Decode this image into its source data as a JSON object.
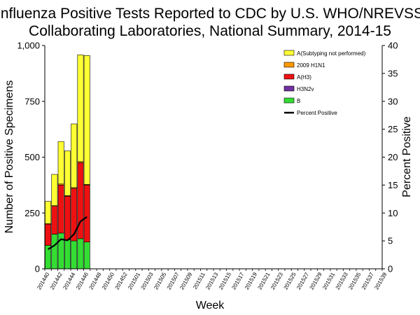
{
  "chart_data": {
    "type": "bar",
    "title_line1": "Influenza Positive Tests Reported to CDC by U.S. WHO/NREVSS",
    "title_line2": "Collaborating Laboratories, National Summary, 2014-15",
    "xlabel": "Week",
    "ylabel": "Number of Positive Specimens",
    "y2label": "Percent Positive",
    "ylim": [
      0,
      1000
    ],
    "y2lim": [
      0,
      40
    ],
    "yticks": [
      "0",
      "250",
      "500",
      "750",
      "1,000"
    ],
    "y2ticks": [
      "0",
      "5",
      "10",
      "15",
      "20",
      "25",
      "30",
      "35",
      "40"
    ],
    "x_tick_labels": [
      "201440",
      "201442",
      "201444",
      "201446",
      "201448",
      "201450",
      "201452",
      "201501",
      "201503",
      "201505",
      "201507",
      "201509",
      "201511",
      "201513",
      "201515",
      "201517",
      "201519",
      "201521",
      "201523",
      "201525",
      "201527",
      "201529",
      "201531",
      "201533",
      "201535",
      "201537",
      "201539"
    ],
    "weeks_total": 52,
    "legend_position": "top-right",
    "series": [
      {
        "name": "B",
        "color": "#33dd33",
        "values": [
          105,
          155,
          160,
          130,
          125,
          135,
          120
        ]
      },
      {
        "name": "H3N2v",
        "color": "#7030a0",
        "values": [
          0,
          0,
          0,
          0,
          0,
          0,
          0
        ]
      },
      {
        "name": "A(H3)",
        "color": "#ee1111",
        "values": [
          95,
          125,
          215,
          195,
          235,
          340,
          255
        ]
      },
      {
        "name": "2009 H1N1",
        "color": "#ff9900",
        "values": [
          2,
          3,
          5,
          3,
          4,
          5,
          3
        ]
      },
      {
        "name": "A(Subtyping not performed)",
        "color": "#ffff33",
        "values": [
          100,
          140,
          190,
          200,
          285,
          478,
          577
        ]
      }
    ],
    "legend_order": [
      "A(Subtyping not performed)",
      "2009 H1N1",
      "A(H3)",
      "H3N2v",
      "B",
      "Percent Positive"
    ],
    "line_series": {
      "name": "Percent Positive",
      "color": "#000000",
      "values": [
        3.5,
        4.2,
        5.3,
        5.1,
        6.2,
        8.5,
        9.3
      ]
    }
  }
}
